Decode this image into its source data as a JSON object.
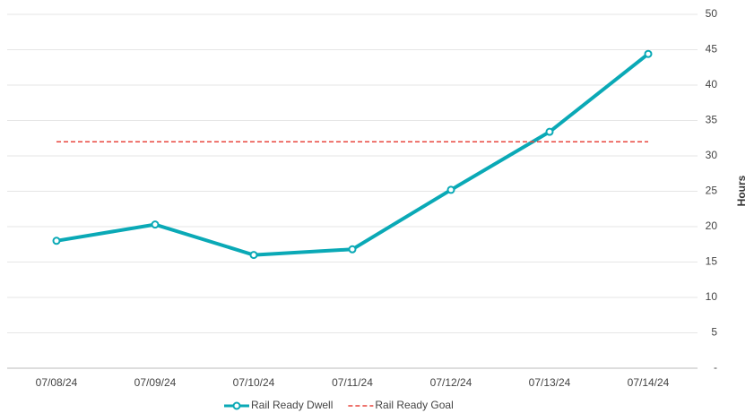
{
  "chart_data": {
    "type": "line",
    "y_axis_label": "Hours",
    "categories": [
      "07/08/24",
      "07/09/24",
      "07/10/24",
      "07/11/24",
      "07/12/24",
      "07/13/24",
      "07/14/24"
    ],
    "series": [
      {
        "name": "Rail Ready Dwell",
        "color": "#0aa9b6",
        "markers": true,
        "dashed": false,
        "values": [
          18,
          20.3,
          16,
          16.8,
          25.2,
          33.4,
          44.4
        ]
      },
      {
        "name": "Rail Ready Goal",
        "color": "#e8473f",
        "markers": false,
        "dashed": true,
        "values": [
          32,
          32,
          32,
          32,
          32,
          32,
          32
        ]
      }
    ],
    "ylim": [
      0,
      50
    ],
    "yticks": [
      {
        "value": 0,
        "label": "-"
      },
      5,
      10,
      15,
      20,
      25,
      30,
      35,
      40,
      45,
      50
    ],
    "grid": true,
    "y_axis_side": "right",
    "legend": "bottom"
  }
}
